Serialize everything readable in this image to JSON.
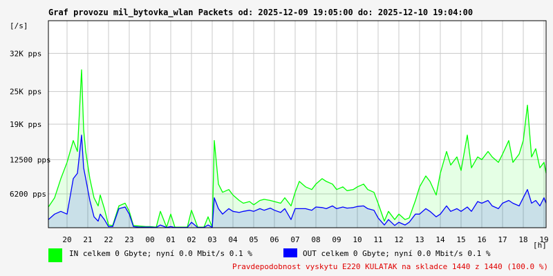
{
  "chart_data": {
    "type": "area",
    "title": "Graf provozu mil_bytovka_wlan Packets od: 2025-12-09 19:05:00 do: 2025-12-10 19:04:00",
    "ylabel": "[/s]",
    "xlabel": "[h]",
    "ylim": [
      0,
      38000
    ],
    "y_ticks": [
      {
        "value": 6200,
        "label": "6200 pps"
      },
      {
        "value": 12500,
        "label": "12500 pps"
      },
      {
        "value": 19000,
        "label": "19K pps"
      },
      {
        "value": 25000,
        "label": "25K pps"
      },
      {
        "value": 32000,
        "label": "32K pps"
      }
    ],
    "x_hours": [
      19.1,
      43.1
    ],
    "x_ticks": [
      "20",
      "21",
      "22",
      "23",
      "00",
      "01",
      "02",
      "03",
      "04",
      "05",
      "06",
      "07",
      "08",
      "09",
      "10",
      "11",
      "12",
      "13",
      "14",
      "15",
      "16",
      "17",
      "18",
      "19"
    ],
    "grid": true,
    "series": [
      {
        "name": "IN",
        "color": "#00ff00",
        "x": [
          19.1,
          19.4,
          19.7,
          20.0,
          20.3,
          20.5,
          20.7,
          20.8,
          20.9,
          21.1,
          21.3,
          21.5,
          21.6,
          21.8,
          22.0,
          22.2,
          22.5,
          22.8,
          23.0,
          23.2,
          23.5,
          23.8,
          24.0,
          24.3,
          24.5,
          24.8,
          25.0,
          25.2,
          25.5,
          25.8,
          26.0,
          26.3,
          26.6,
          26.8,
          27.0,
          27.1,
          27.3,
          27.5,
          27.8,
          28.0,
          28.3,
          28.5,
          28.8,
          29.0,
          29.3,
          29.5,
          29.8,
          30.0,
          30.3,
          30.5,
          30.8,
          31.0,
          31.2,
          31.5,
          31.8,
          32.0,
          32.3,
          32.5,
          32.8,
          33.0,
          33.3,
          33.5,
          33.8,
          34.0,
          34.3,
          34.5,
          34.8,
          35.0,
          35.3,
          35.5,
          35.8,
          36.0,
          36.3,
          36.5,
          36.8,
          37.0,
          37.3,
          37.5,
          37.8,
          38.0,
          38.3,
          38.5,
          38.8,
          39.0,
          39.3,
          39.5,
          39.8,
          40.0,
          40.3,
          40.5,
          40.8,
          41.0,
          41.3,
          41.5,
          41.8,
          42.0,
          42.2,
          42.4,
          42.6,
          42.8,
          43.0,
          43.1
        ],
        "values": [
          3800,
          5500,
          9000,
          12000,
          16000,
          14000,
          29000,
          18000,
          14000,
          9000,
          5500,
          4000,
          6000,
          3500,
          500,
          400,
          4000,
          4500,
          3000,
          400,
          300,
          200,
          200,
          100,
          3000,
          100,
          2500,
          100,
          100,
          100,
          3200,
          100,
          100,
          2000,
          100,
          16000,
          8000,
          6500,
          7000,
          6000,
          5000,
          4500,
          4800,
          4200,
          5000,
          5200,
          5000,
          4800,
          4500,
          5500,
          4000,
          6500,
          8500,
          7500,
          7000,
          8000,
          9000,
          8500,
          8000,
          7000,
          7500,
          6800,
          7000,
          7500,
          8000,
          7000,
          6500,
          4500,
          1200,
          3000,
          1500,
          2500,
          1500,
          1800,
          5000,
          7500,
          9500,
          8500,
          6000,
          10000,
          14000,
          11500,
          13000,
          10500,
          17000,
          11000,
          13000,
          12500,
          14000,
          13000,
          12000,
          13500,
          16000,
          12000,
          13500,
          16000,
          22500,
          13000,
          14500,
          11000,
          12000,
          10000
        ]
      },
      {
        "name": "OUT",
        "color": "#0000ff",
        "x": [
          19.1,
          19.4,
          19.7,
          20.0,
          20.3,
          20.5,
          20.7,
          20.8,
          20.9,
          21.1,
          21.3,
          21.5,
          21.6,
          21.8,
          22.0,
          22.2,
          22.5,
          22.8,
          23.0,
          23.2,
          23.5,
          23.8,
          24.0,
          24.3,
          24.5,
          24.8,
          25.0,
          25.2,
          25.5,
          25.8,
          26.0,
          26.3,
          26.6,
          26.8,
          27.0,
          27.1,
          27.3,
          27.5,
          27.8,
          28.0,
          28.3,
          28.5,
          28.8,
          29.0,
          29.3,
          29.5,
          29.8,
          30.0,
          30.3,
          30.5,
          30.8,
          31.0,
          31.2,
          31.5,
          31.8,
          32.0,
          32.3,
          32.5,
          32.8,
          33.0,
          33.3,
          33.5,
          33.8,
          34.0,
          34.3,
          34.5,
          34.8,
          35.0,
          35.3,
          35.5,
          35.8,
          36.0,
          36.3,
          36.5,
          36.8,
          37.0,
          37.3,
          37.5,
          37.8,
          38.0,
          38.3,
          38.5,
          38.8,
          39.0,
          39.3,
          39.5,
          39.8,
          40.0,
          40.3,
          40.5,
          40.8,
          41.0,
          41.3,
          41.5,
          41.8,
          42.0,
          42.2,
          42.4,
          42.6,
          42.8,
          43.0,
          43.1
        ],
        "values": [
          1500,
          2500,
          3000,
          2500,
          9000,
          10000,
          17000,
          11000,
          9000,
          5000,
          2000,
          1200,
          2500,
          1500,
          200,
          200,
          3500,
          3800,
          2500,
          200,
          100,
          100,
          100,
          50,
          500,
          50,
          200,
          50,
          50,
          50,
          1000,
          50,
          50,
          500,
          50,
          5500,
          3500,
          2500,
          3500,
          3000,
          2800,
          3000,
          3200,
          3000,
          3500,
          3200,
          3600,
          3200,
          2800,
          3500,
          1500,
          3500,
          3500,
          3500,
          3200,
          3800,
          3700,
          3500,
          4000,
          3500,
          3800,
          3600,
          3700,
          3900,
          4000,
          3500,
          3200,
          1800,
          500,
          1500,
          400,
          1000,
          500,
          1000,
          2500,
          2500,
          3500,
          3000,
          2000,
          2500,
          4000,
          3000,
          3500,
          3000,
          3800,
          3000,
          4800,
          4500,
          5000,
          4000,
          3500,
          4500,
          5000,
          4500,
          4000,
          5500,
          7000,
          4500,
          5000,
          4000,
          5500,
          4500
        ]
      }
    ],
    "legend": [
      {
        "series": "IN",
        "text": "IN celkem 0 Gbyte; nyní   0.0 Mbit/s 0.1 %"
      },
      {
        "series": "OUT",
        "text": "OUT celkem 0 Gbyte; nyní   0.0 Mbit/s 0.1 %"
      }
    ],
    "note": "Pravdepodobnost vyskytu E220 KULATAK na skladce 1440 z 1440 (100.0 %)"
  },
  "colors": {
    "background": "#f5f5f5",
    "plot_background": "#ffffff",
    "grid": "#c8c8c8",
    "note": "#e00000"
  }
}
